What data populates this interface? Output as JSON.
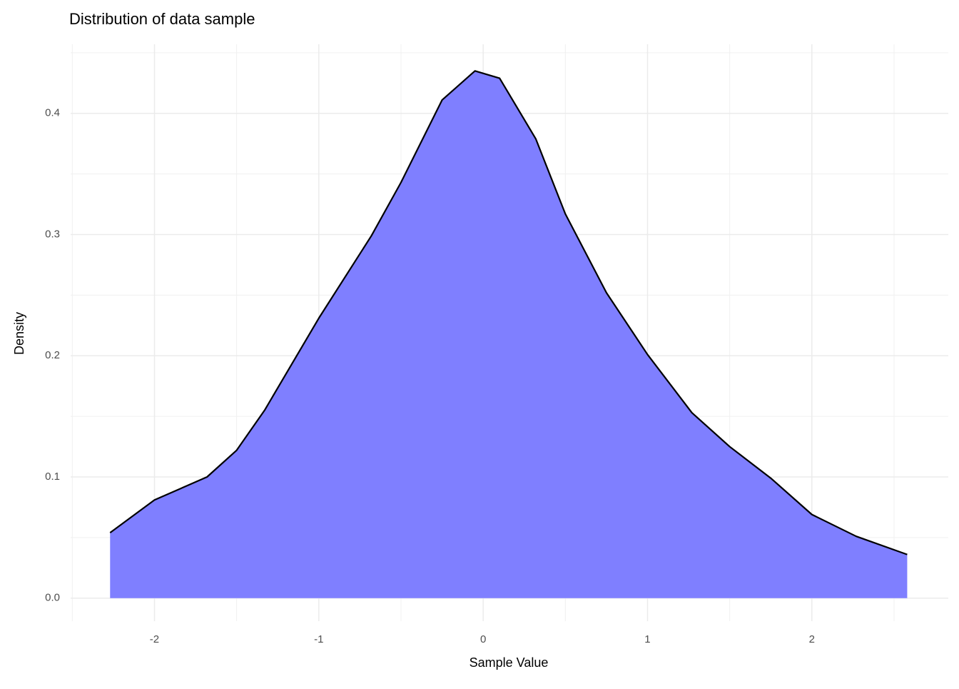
{
  "chart_data": {
    "type": "area",
    "title": "Distribution of data sample",
    "x_label": "Sample Value",
    "y_label": "Density",
    "x": [
      -2.27,
      -2.0,
      -1.68,
      -1.5,
      -1.33,
      -1.0,
      -0.68,
      -0.5,
      -0.25,
      -0.05,
      0.1,
      0.32,
      0.5,
      0.75,
      1.0,
      1.27,
      1.5,
      1.75,
      2.0,
      2.27,
      2.58
    ],
    "values": [
      0.054,
      0.081,
      0.1,
      0.122,
      0.155,
      0.231,
      0.299,
      0.343,
      0.411,
      0.435,
      0.429,
      0.379,
      0.317,
      0.252,
      0.201,
      0.153,
      0.125,
      0.099,
      0.069,
      0.051,
      0.036
    ],
    "fill_color": "#7f7fff",
    "line_color": "#000000",
    "xlim": [
      -2.51,
      2.83
    ],
    "ylim": [
      -0.019,
      0.457
    ],
    "xticks": [
      -2,
      -1,
      0,
      1,
      2
    ],
    "yticks": [
      {
        "value": 0,
        "label": "0.0"
      },
      0.1,
      0.2,
      0.3,
      0.4
    ],
    "x_minor_grid": [
      -2.5,
      -1.5,
      -0.5,
      0.5,
      1.5,
      2.5
    ],
    "y_minor_grid": [
      0.05,
      0.15,
      0.25,
      0.35,
      0.45
    ],
    "grid": true
  }
}
